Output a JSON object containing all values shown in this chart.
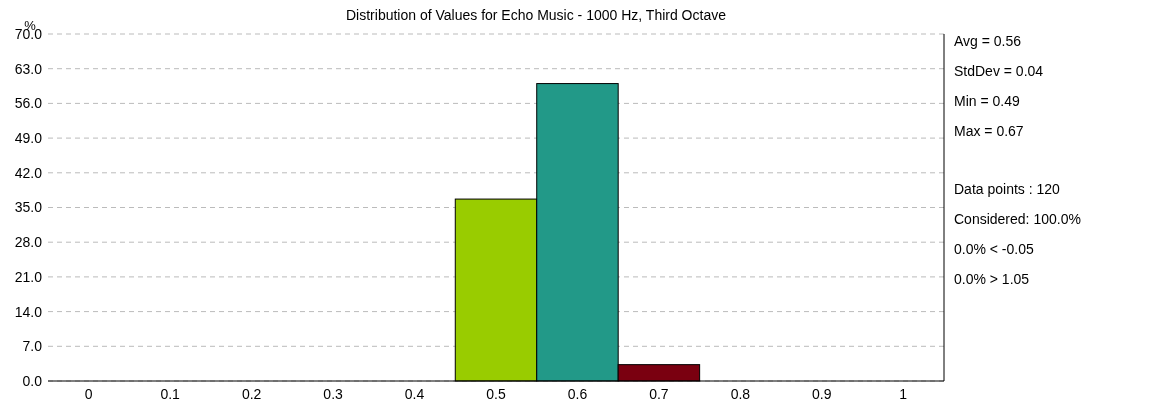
{
  "chart_data": {
    "type": "histogram",
    "title": "Distribution of Values for Echo Music - 1000 Hz, Third Octave",
    "ylabel": "%",
    "bins": [
      -0.05,
      0.05,
      0.15,
      0.25,
      0.35,
      0.45,
      0.55,
      0.65,
      0.75,
      0.85,
      0.95,
      1.05
    ],
    "values": [
      0,
      0,
      0,
      0,
      0,
      36.7,
      60.0,
      3.3,
      0,
      0,
      0
    ],
    "colors": [
      "#99cc00",
      "#99cc00",
      "#99cc00",
      "#99cc00",
      "#99cc00",
      "#99cc00",
      "#229988",
      "#7a0010",
      "#7a0010",
      "#7a0010",
      "#7a0010"
    ],
    "xlim": [
      -0.05,
      1.05
    ],
    "xticks": [
      0,
      0.1,
      0.2,
      0.3,
      0.4,
      0.5,
      0.6,
      0.7,
      0.8,
      0.9,
      1
    ],
    "ylim": [
      0,
      70
    ],
    "yticks": [
      {
        "value": 0,
        "label": "0.0"
      },
      {
        "value": 7,
        "label": "7.0"
      },
      {
        "value": 14,
        "label": "14.0"
      },
      {
        "value": 21,
        "label": "21.0"
      },
      {
        "value": 28,
        "label": "28.0"
      },
      {
        "value": 35,
        "label": "35.0"
      },
      {
        "value": 42,
        "label": "42.0"
      },
      {
        "value": 49,
        "label": "49.0"
      },
      {
        "value": 56,
        "label": "56.0"
      },
      {
        "value": 63,
        "label": "63.0"
      },
      {
        "value": 70,
        "label": "70.0"
      }
    ],
    "grid": "y",
    "annotations": [
      "Avg = 0.56",
      "StdDev = 0.04",
      "Min = 0.49",
      "Max = 0.67",
      "Data points : 120",
      "Considered: 100.0%",
      "0.0% < -0.05",
      "0.0% > 1.05"
    ]
  }
}
